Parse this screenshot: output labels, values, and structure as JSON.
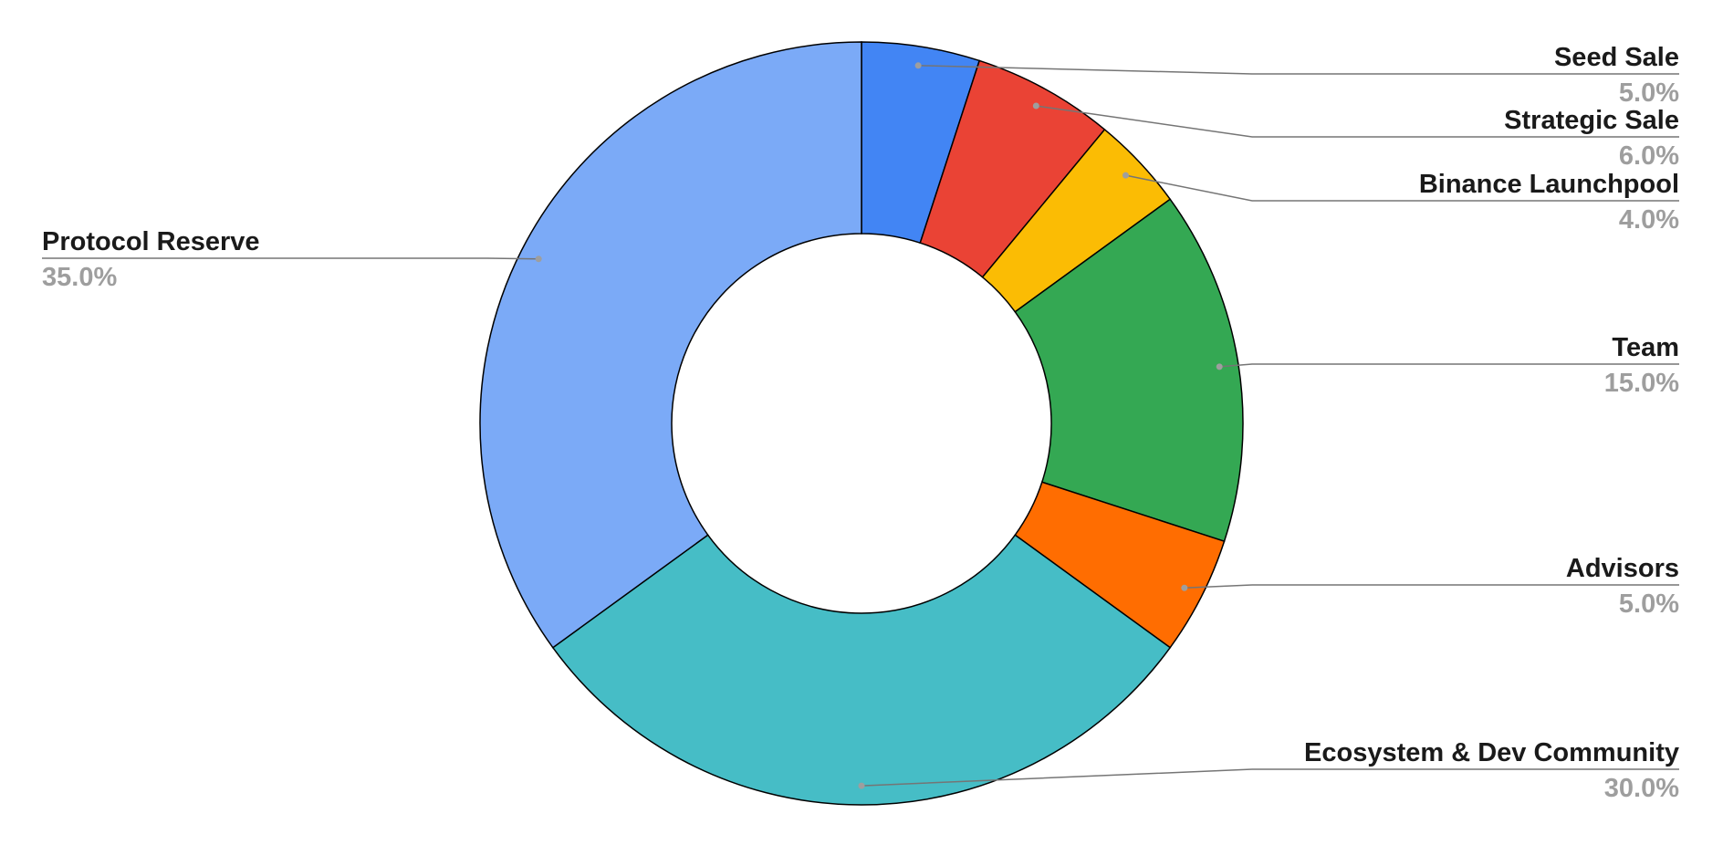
{
  "chart_data": {
    "type": "donut",
    "categories": [
      "Seed Sale",
      "Strategic Sale",
      "Binance Launchpool",
      "Team",
      "Advisors",
      "Ecosystem & Dev Community",
      "Protocol Reserve"
    ],
    "values": [
      5,
      6,
      4,
      15,
      5,
      30,
      35
    ],
    "value_labels": [
      "5.0%",
      "6.0%",
      "4.0%",
      "15.0%",
      "5.0%",
      "30.0%",
      "35.0%"
    ],
    "colors": [
      "#4285f4",
      "#ea4335",
      "#fbbc04",
      "#34a853",
      "#ff6d01",
      "#46bdc6",
      "#7baaf7"
    ]
  }
}
